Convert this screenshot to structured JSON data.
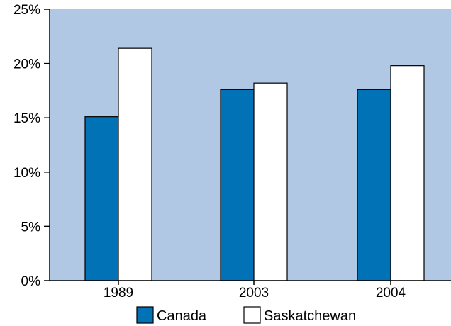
{
  "chart_data": {
    "type": "bar",
    "categories": [
      "1989",
      "2003",
      "2004"
    ],
    "series": [
      {
        "name": "Canada",
        "values": [
          15.1,
          17.6,
          17.6
        ],
        "color": "#0072b5"
      },
      {
        "name": "Saskatchewan",
        "values": [
          21.4,
          18.2,
          19.8
        ],
        "color": "#ffffff"
      }
    ],
    "ylim": [
      0,
      25
    ],
    "yticks": [
      0,
      5,
      10,
      15,
      20,
      25
    ],
    "ytick_labels": [
      "0%",
      "5%",
      "10%",
      "15%",
      "20%",
      "25%"
    ],
    "grid": false,
    "legend_position": "bottom",
    "plot_background": "#b0c8e4",
    "xlabel": "",
    "ylabel": "",
    "title": ""
  }
}
